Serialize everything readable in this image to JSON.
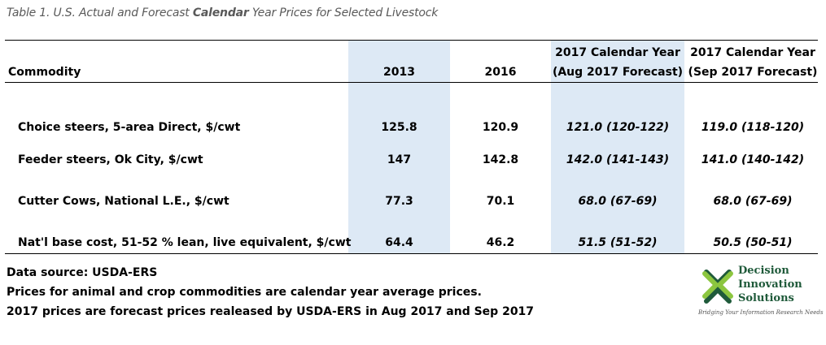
{
  "title": {
    "before": "Table 1. U.S. Actual and Forecast ",
    "bold": "Calendar",
    "after": " Year Prices for Selected Livestock"
  },
  "table": {
    "headers": {
      "commodity": "Commodity",
      "y2013": "2013",
      "y2016": "2016",
      "aug_line1": "2017 Calendar Year",
      "aug_line2": "(Aug 2017 Forecast)",
      "sep_line1": "2017 Calendar Year",
      "sep_line2": "(Sep 2017 Forecast)"
    },
    "rows": [
      {
        "commodity": "Choice steers, 5-area Direct, $/cwt",
        "y2013": "125.8",
        "y2016": "120.9",
        "aug": "121.0 (120-122)",
        "sep": "119.0 (118-120)"
      },
      {
        "commodity": "Feeder steers, Ok City, $/cwt",
        "y2013": "147",
        "y2016": "142.8",
        "aug": "142.0 (141-143)",
        "sep": "141.0 (140-142)"
      },
      {
        "commodity": "Cutter Cows, National L.E., $/cwt",
        "y2013": "77.3",
        "y2016": "70.1",
        "aug": "68.0 (67-69)",
        "sep": "68.0 (67-69)"
      },
      {
        "commodity": "Nat'l base cost, 51-52 % lean, live equivalent, $/cwt",
        "y2013": "64.4",
        "y2016": "46.2",
        "aug": "51.5 (51-52)",
        "sep": "50.5 (50-51)"
      }
    ],
    "highlight_color": "#dde9f5"
  },
  "notes": {
    "source": "Data source: USDA-ERS",
    "note1": "Prices for animal and crop commodities are calendar year average prices.",
    "note2": " 2017 prices are forecast prices realeased by USDA-ERS in Aug 2017 and Sep 2017"
  },
  "logo": {
    "line1": "Decision",
    "line2": "Innovation",
    "line3": "Solutions",
    "tagline": "Bridging Your Information Research Needs",
    "color": "#1f5a3a",
    "accent": "#8cc63f"
  }
}
